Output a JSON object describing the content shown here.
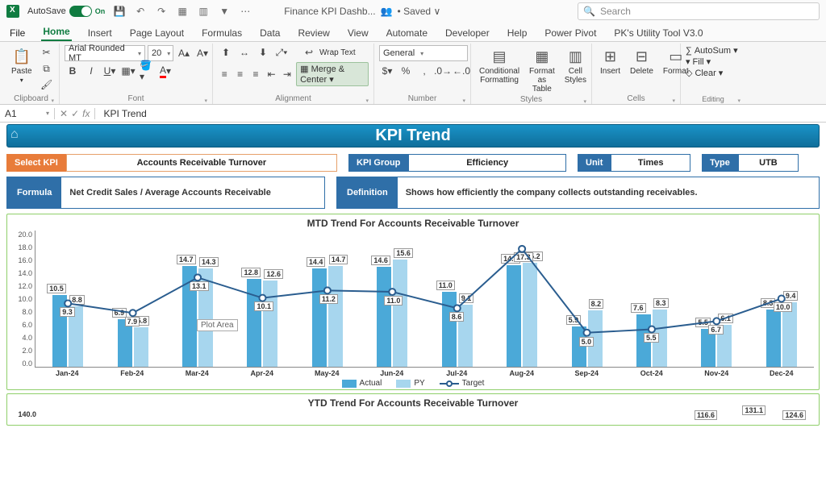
{
  "titlebar": {
    "autosave_label": "AutoSave",
    "autosave_on": "On",
    "doc_name": "Finance KPI Dashb...",
    "saved": "• Saved ∨",
    "search_placeholder": "Search"
  },
  "tabs": [
    "File",
    "Home",
    "Insert",
    "Page Layout",
    "Formulas",
    "Data",
    "Review",
    "View",
    "Automate",
    "Developer",
    "Help",
    "Power Pivot",
    "PK's Utility Tool V3.0"
  ],
  "active_tab": "Home",
  "ribbon": {
    "clipboard": {
      "paste": "Paste",
      "label": "Clipboard"
    },
    "font": {
      "name": "Arial Rounded MT",
      "size": "20",
      "label": "Font"
    },
    "alignment": {
      "wrap": "Wrap Text",
      "merge": "Merge & Center",
      "label": "Alignment"
    },
    "number": {
      "format": "General",
      "label": "Number"
    },
    "styles": {
      "cf": "Conditional\nFormatting",
      "fat": "Format as\nTable",
      "cs": "Cell\nStyles",
      "label": "Styles"
    },
    "cells": {
      "ins": "Insert",
      "del": "Delete",
      "fmt": "Format",
      "label": "Cells"
    },
    "editing": {
      "autosum": "AutoSum",
      "fill": "Fill",
      "clear": "Clear",
      "label": "Editing"
    }
  },
  "formula": {
    "namebox": "A1",
    "value": "KPI Trend"
  },
  "dash": {
    "title": "KPI Trend",
    "select_kpi_l": "Select KPI",
    "select_kpi_v": "Accounts Receivable Turnover",
    "group_l": "KPI Group",
    "group_v": "Efficiency",
    "unit_l": "Unit",
    "unit_v": "Times",
    "type_l": "Type",
    "type_v": "UTB",
    "formula_l": "Formula",
    "formula_v": "Net Credit Sales / Average Accounts Receivable",
    "def_l": "Definition",
    "def_v": "Shows how efficiently the company collects outstanding receivables."
  },
  "chart": {
    "title": "MTD Trend For Accounts Receivable Turnover",
    "ymax": 20,
    "ystep": 2,
    "months": [
      "Jan-24",
      "Feb-24",
      "Mar-24",
      "Apr-24",
      "May-24",
      "Jun-24",
      "Jul-24",
      "Aug-24",
      "Sep-24",
      "Oct-24",
      "Nov-24",
      "Dec-24"
    ],
    "actual": [
      10.5,
      6.9,
      14.7,
      12.8,
      14.4,
      14.6,
      11.0,
      14.8,
      5.9,
      7.6,
      5.5,
      8.3
    ],
    "py": [
      8.8,
      5.8,
      14.3,
      12.6,
      14.7,
      15.6,
      9.1,
      15.2,
      8.2,
      8.3,
      6.1,
      9.4
    ],
    "target": [
      9.3,
      7.9,
      13.1,
      10.1,
      11.2,
      11.0,
      8.6,
      17.3,
      5.0,
      5.5,
      6.7,
      10.0
    ],
    "actual_labels": [
      "10.5",
      "6.9",
      "14.7",
      "12.8",
      "14.4",
      "14.6",
      "11.0",
      "14.8",
      "5.9",
      "7.6",
      "5.5",
      "8.3"
    ],
    "py_labels": [
      "8.8",
      "5.8",
      "14.3",
      "12.6",
      "14.7",
      "15.6",
      "9.1",
      "15.2",
      "8.2",
      "8.3",
      "6.1",
      "9.4"
    ],
    "target_labels": [
      "9.3",
      "7.9",
      "13.1",
      "10.1",
      "11.2",
      "11.0",
      "8.6",
      "17.3",
      "5.0",
      "5.5",
      "6.7",
      "10.0"
    ],
    "colors": {
      "actual": "#4ba9d8",
      "py": "#a7d6ee",
      "target": "#2a5d8f",
      "border": "#8fcf6a"
    },
    "legend": [
      "Actual",
      "PY",
      "Target"
    ],
    "plot_area_note": "Plot Area"
  },
  "chart2": {
    "title": "YTD Trend For Accounts Receivable Turnover",
    "ytop": "140.0",
    "peek": [
      "116.6",
      "131.1",
      "124.6"
    ]
  }
}
